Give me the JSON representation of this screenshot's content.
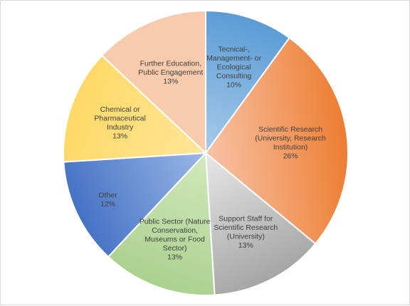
{
  "chart_data": {
    "type": "pie",
    "start_angle_deg": 0,
    "direction": "clockwise",
    "slices": [
      {
        "label": [
          "Tecnical-,",
          "Management- or",
          "Ecological",
          "Consulting"
        ],
        "percent_label": "10%",
        "value": 10,
        "color_from": "#a7cbea",
        "color_to": "#5a9bd5"
      },
      {
        "label": [
          "Scientific Research",
          "(University, Research",
          "Institution)"
        ],
        "percent_label": "26%",
        "value": 26,
        "color_from": "#f8c3a6",
        "color_to": "#ed7d31"
      },
      {
        "label": [
          "Support Staff for",
          "Scientific Research",
          "(University)"
        ],
        "percent_label": "13%",
        "value": 13,
        "color_from": "#e8e8e8",
        "color_to": "#a5a5a5"
      },
      {
        "label": [
          "Public Sector (Nature",
          "Conservation,",
          "Museums or Food",
          "Sector)"
        ],
        "percent_label": "13%",
        "value": 13,
        "color_from": "#d2e9bd",
        "color_to": "#a9d18e"
      },
      {
        "label": [
          "Other"
        ],
        "percent_label": "12%",
        "value": 12,
        "color_from": "#9bb8e6",
        "color_to": "#4472c4"
      },
      {
        "label": [
          "Chemical or",
          "Pharmaceutical",
          "Industry"
        ],
        "percent_label": "13%",
        "value": 13,
        "color_from": "#ffe699",
        "color_to": "#ffd966"
      },
      {
        "label": [
          "Further Education,",
          "Public Engagement"
        ],
        "percent_label": "13%",
        "value": 13,
        "color_from": "#f8cbad",
        "color_to": "#f8cbad"
      }
    ]
  }
}
